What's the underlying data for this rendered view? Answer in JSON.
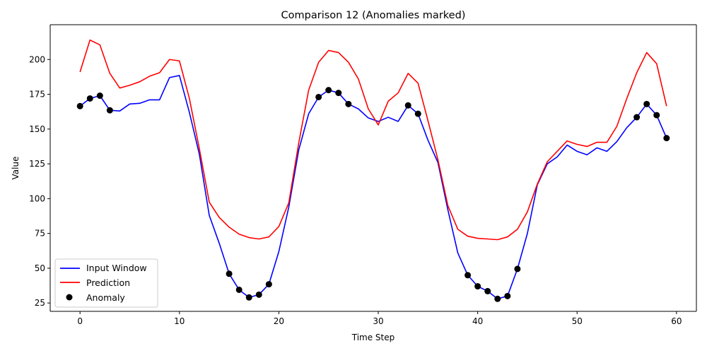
{
  "chart_data": {
    "type": "line",
    "title": "Comparison 12 (Anomalies marked)",
    "xlabel": "Time Step",
    "ylabel": "Value",
    "xlim": [
      -3,
      62
    ],
    "ylim": [
      19,
      225
    ],
    "xticks": [
      0,
      10,
      20,
      30,
      40,
      50,
      60
    ],
    "yticks": [
      25,
      50,
      75,
      100,
      125,
      150,
      175,
      200
    ],
    "legend_position": "lower-left",
    "series": [
      {
        "name": "Input Window",
        "color": "#0000ff",
        "kind": "line",
        "x": [
          0,
          1,
          2,
          3,
          4,
          5,
          6,
          7,
          8,
          9,
          10,
          11,
          12,
          13,
          14,
          15,
          16,
          17,
          18,
          19,
          20,
          21,
          22,
          23,
          24,
          25,
          26,
          27,
          28,
          29,
          30,
          31,
          32,
          33,
          34,
          35,
          36,
          37,
          38,
          39,
          40,
          41,
          42,
          43,
          44,
          45,
          46,
          47,
          48,
          49,
          50,
          51,
          52,
          53,
          54,
          55,
          56,
          57,
          58,
          59
        ],
        "y": [
          166.5,
          172,
          174,
          163.5,
          163,
          168,
          168.5,
          171,
          171,
          187,
          188.5,
          162,
          132,
          88,
          68,
          46,
          34.5,
          29,
          31,
          38.5,
          62,
          94,
          135,
          161,
          173,
          178,
          176,
          168,
          164.5,
          158,
          155.5,
          158.5,
          155.5,
          167,
          161,
          142,
          126,
          92,
          61,
          45,
          37,
          33.5,
          28,
          30,
          49.5,
          75,
          110,
          125,
          130,
          138.5,
          134,
          131.5,
          136.5,
          134,
          141,
          151,
          158.5,
          168,
          160,
          143.5
        ]
      },
      {
        "name": "Prediction",
        "color": "#ff0000",
        "kind": "line",
        "x": [
          0,
          1,
          2,
          3,
          4,
          5,
          6,
          7,
          8,
          9,
          10,
          11,
          12,
          13,
          14,
          15,
          16,
          17,
          18,
          19,
          20,
          21,
          22,
          23,
          24,
          25,
          26,
          27,
          28,
          29,
          30,
          31,
          32,
          33,
          34,
          35,
          36,
          37,
          38,
          39,
          40,
          41,
          42,
          43,
          44,
          45,
          46,
          47,
          48,
          49,
          50,
          51,
          52,
          53,
          54,
          55,
          56,
          57,
          58,
          59
        ],
        "y": [
          191,
          214,
          210.5,
          190,
          179.5,
          181.5,
          184,
          188,
          190.5,
          200,
          199,
          172,
          136,
          97.5,
          86.5,
          79.5,
          74.5,
          72,
          71,
          72.5,
          80,
          97,
          140,
          178,
          198,
          206.5,
          205,
          198,
          186,
          164.5,
          153,
          170,
          176,
          190,
          183,
          156,
          128,
          95,
          78,
          73,
          71.5,
          71,
          70.5,
          72.5,
          78,
          90.5,
          110.5,
          126.5,
          134,
          141.5,
          139,
          137.5,
          140.5,
          140.5,
          152,
          172,
          190.5,
          205,
          197,
          166.5
        ]
      },
      {
        "name": "Anomaly",
        "color": "#000000",
        "kind": "scatter",
        "x": [
          0,
          1,
          2,
          3,
          15,
          16,
          17,
          18,
          19,
          24,
          25,
          26,
          27,
          33,
          34,
          39,
          40,
          41,
          42,
          43,
          44,
          56,
          57,
          58,
          59
        ],
        "y": [
          166.5,
          172,
          174,
          163.5,
          46,
          34.5,
          29,
          31,
          38.5,
          173,
          178,
          176,
          168,
          167,
          161,
          45,
          37,
          33.5,
          28,
          30,
          49.5,
          158.5,
          168,
          160,
          143.5
        ]
      }
    ]
  }
}
